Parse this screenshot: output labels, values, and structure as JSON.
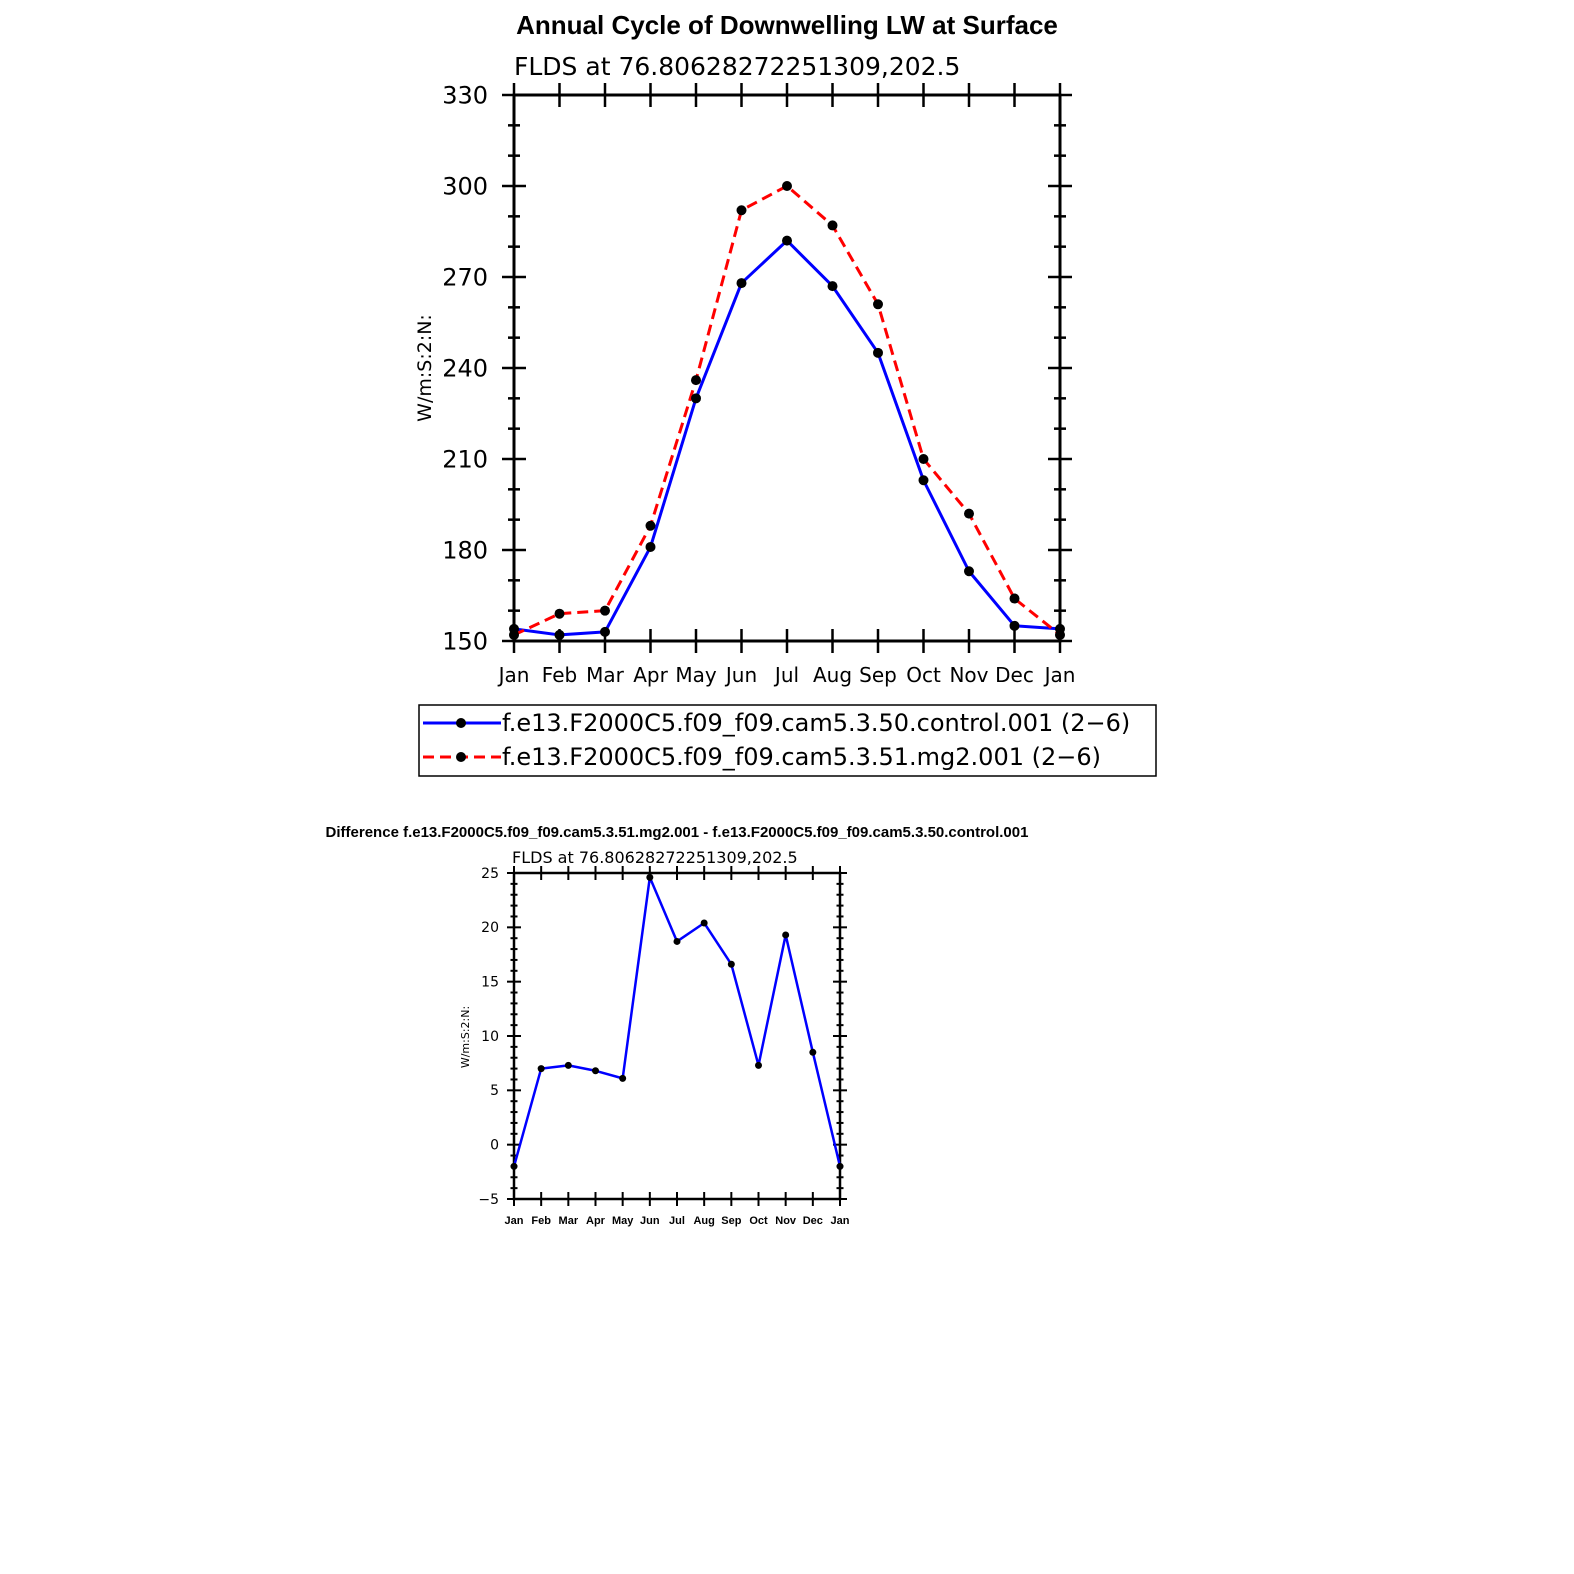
{
  "chart_data": [
    {
      "type": "line",
      "title": "Annual Cycle of Downwelling LW at Surface",
      "subtitle": "FLDS at 76.80628272251309,202.5",
      "ylabel": "W/m:S:2:N:",
      "xlabel": "",
      "categories": [
        "Jan",
        "Feb",
        "Mar",
        "Apr",
        "May",
        "Jun",
        "Jul",
        "Aug",
        "Sep",
        "Oct",
        "Nov",
        "Dec",
        "Jan"
      ],
      "ylim": [
        150,
        330
      ],
      "yticks": [
        "150",
        "180",
        "210",
        "240",
        "270",
        "300",
        "330"
      ],
      "grid": false,
      "legend_position": "bottom",
      "series": [
        {
          "name": "f.e13.F2000C5.f09_f09.cam5.3.50.control.001 (2−6)",
          "color": "#0000ff",
          "style": "solid",
          "values": [
            154,
            152,
            153,
            181,
            230,
            268,
            282,
            267,
            245,
            203,
            173,
            155,
            154
          ]
        },
        {
          "name": "f.e13.F2000C5.f09_f09.cam5.3.51.mg2.001 (2−6)",
          "color": "#ff0000",
          "style": "dashed",
          "values": [
            152,
            159,
            160,
            188,
            236,
            292,
            300,
            287,
            261,
            210,
            192,
            164,
            152
          ]
        }
      ]
    },
    {
      "type": "line",
      "title": "Difference f.e13.F2000C5.f09_f09.cam5.3.51.mg2.001 - f.e13.F2000C5.f09_f09.cam5.3.50.control.001",
      "subtitle": "FLDS at 76.80628272251309,202.5",
      "ylabel": "W/m:S:2:N:",
      "xlabel": "",
      "categories": [
        "Jan",
        "Feb",
        "Mar",
        "Apr",
        "May",
        "Jun",
        "Jul",
        "Aug",
        "Sep",
        "Oct",
        "Nov",
        "Dec",
        "Jan"
      ],
      "ylim": [
        -5,
        25
      ],
      "yticks": [
        "−5",
        "0",
        "5",
        "10",
        "15",
        "20",
        "25"
      ],
      "grid": false,
      "series": [
        {
          "color": "#0000ff",
          "style": "solid",
          "values": [
            -2,
            7,
            7.3,
            6.8,
            6.1,
            24.6,
            18.7,
            20.4,
            16.6,
            7.3,
            19.3,
            8.5,
            -2
          ]
        }
      ]
    }
  ]
}
